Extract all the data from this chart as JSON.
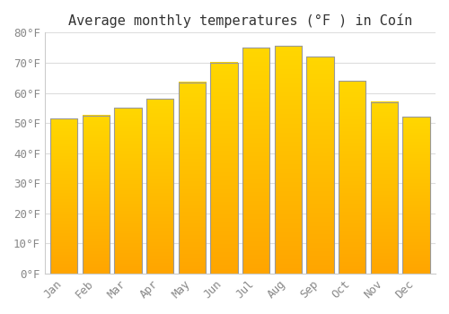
{
  "title": "Average monthly temperatures (°F ) in Coín",
  "months": [
    "Jan",
    "Feb",
    "Mar",
    "Apr",
    "May",
    "Jun",
    "Jul",
    "Aug",
    "Sep",
    "Oct",
    "Nov",
    "Dec"
  ],
  "values": [
    51.5,
    52.5,
    55.0,
    58.0,
    63.5,
    70.0,
    75.0,
    75.5,
    72.0,
    64.0,
    57.0,
    52.0
  ],
  "bar_color_bottom": "#FFA500",
  "bar_color_top": "#FFD700",
  "bar_edge_color": "#999999",
  "background_color": "#ffffff",
  "grid_color": "#dddddd",
  "tick_color": "#888888",
  "title_color": "#333333",
  "ylim": [
    0,
    80
  ],
  "yticks": [
    0,
    10,
    20,
    30,
    40,
    50,
    60,
    70,
    80
  ],
  "ytick_labels": [
    "0°F",
    "10°F",
    "20°F",
    "30°F",
    "40°F",
    "50°F",
    "60°F",
    "70°F",
    "80°F"
  ],
  "font_family": "monospace",
  "title_fontsize": 11,
  "tick_fontsize": 9,
  "bar_width": 0.85,
  "figsize": [
    5.0,
    3.5
  ],
  "dpi": 100
}
